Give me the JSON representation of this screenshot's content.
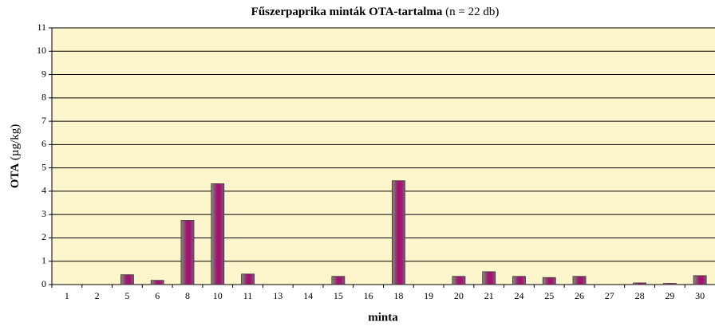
{
  "chart_data": {
    "type": "bar",
    "title": "Fűszerpaprika minták OTA-tartalma",
    "title_note": "(n = 22 db)",
    "x_label": "minta",
    "y_label": "OTA",
    "y_unit": "(µg/kg)",
    "categories": [
      "1",
      "2",
      "5",
      "6",
      "8",
      "10",
      "11",
      "13",
      "14",
      "15",
      "16",
      "18",
      "19",
      "20",
      "21",
      "24",
      "25",
      "26",
      "27",
      "28",
      "29",
      "30"
    ],
    "values": [
      0,
      0,
      0.42,
      0.18,
      2.75,
      4.32,
      0.45,
      0,
      0,
      0.35,
      0,
      4.45,
      0,
      0.35,
      0.55,
      0.35,
      0.3,
      0.35,
      0,
      0.07,
      0.05,
      0.38
    ],
    "color": "#a0146e",
    "ylim": [
      0,
      11
    ],
    "yticks": [
      0,
      1,
      2,
      3,
      4,
      5,
      6,
      7,
      8,
      9,
      10,
      11
    ],
    "grid": true
  }
}
